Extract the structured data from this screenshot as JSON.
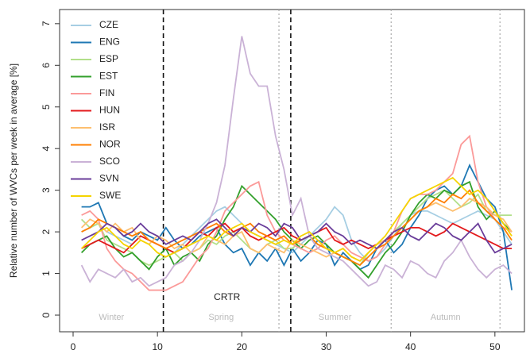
{
  "chart_data": {
    "type": "line",
    "y_label": "Relative number of WVCs per week in average [%]",
    "x": [
      1,
      2,
      3,
      4,
      5,
      6,
      7,
      8,
      9,
      10,
      11,
      12,
      13,
      14,
      15,
      16,
      17,
      18,
      19,
      20,
      21,
      22,
      23,
      24,
      25,
      26,
      27,
      28,
      29,
      30,
      31,
      32,
      33,
      34,
      35,
      36,
      37,
      38,
      39,
      40,
      41,
      42,
      43,
      44,
      45,
      46,
      47,
      48,
      49,
      50,
      51,
      52
    ],
    "series": [
      {
        "name": "CZE",
        "color": "#a6cee3",
        "values": [
          2.0,
          2.1,
          2.2,
          2.0,
          1.9,
          1.8,
          1.7,
          1.9,
          1.8,
          1.7,
          1.6,
          1.5,
          1.7,
          1.9,
          2.1,
          2.3,
          2.5,
          2.6,
          2.4,
          2.2,
          2.0,
          1.9,
          1.8,
          1.7,
          1.6,
          1.5,
          1.7,
          1.9,
          2.1,
          2.3,
          2.6,
          2.4,
          1.8,
          1.5,
          1.3,
          1.4,
          1.6,
          1.9,
          2.2,
          2.4,
          2.5,
          2.5,
          2.4,
          2.3,
          2.2,
          2.3,
          2.4,
          2.5,
          2.4,
          2.3,
          2.0,
          1.7
        ]
      },
      {
        "name": "ENG",
        "color": "#1f78b4",
        "values": [
          2.6,
          2.6,
          2.7,
          2.2,
          2.1,
          1.9,
          1.8,
          2.0,
          1.9,
          1.8,
          2.1,
          1.8,
          1.6,
          1.7,
          1.9,
          2.0,
          2.1,
          1.7,
          1.5,
          1.6,
          1.2,
          1.5,
          1.3,
          1.6,
          1.2,
          1.6,
          1.3,
          1.5,
          1.8,
          1.7,
          1.2,
          1.5,
          1.3,
          1.1,
          1.2,
          1.6,
          1.8,
          1.5,
          1.7,
          2.1,
          2.4,
          2.8,
          3.0,
          3.1,
          2.9,
          3.1,
          3.6,
          3.2,
          2.8,
          2.6,
          2.0,
          0.6
        ]
      },
      {
        "name": "ESP",
        "color": "#b2df8a",
        "values": [
          2.3,
          2.1,
          2.2,
          1.8,
          1.7,
          1.6,
          1.5,
          1.3,
          1.2,
          1.3,
          1.4,
          1.5,
          1.3,
          1.5,
          1.6,
          1.8,
          1.7,
          1.9,
          2.0,
          1.8,
          1.6,
          1.5,
          1.7,
          1.8,
          1.6,
          1.6,
          1.8,
          1.9,
          1.7,
          1.6,
          1.5,
          1.4,
          1.3,
          1.2,
          1.5,
          1.7,
          1.8,
          2.0,
          2.2,
          2.4,
          2.6,
          2.8,
          2.9,
          3.0,
          2.8,
          2.6,
          2.7,
          2.9,
          2.5,
          2.4,
          2.4,
          2.4
        ]
      },
      {
        "name": "EST",
        "color": "#33a02c",
        "values": [
          1.5,
          1.7,
          1.8,
          1.9,
          1.6,
          1.4,
          1.5,
          1.3,
          1.1,
          1.4,
          1.6,
          1.2,
          1.4,
          1.5,
          1.3,
          1.7,
          1.9,
          2.3,
          2.6,
          3.1,
          2.9,
          2.7,
          2.5,
          2.3,
          2.0,
          1.8,
          1.6,
          1.8,
          1.9,
          1.7,
          1.5,
          1.4,
          1.3,
          1.1,
          0.9,
          1.2,
          1.5,
          1.7,
          2.0,
          2.4,
          2.7,
          2.9,
          2.8,
          3.0,
          2.9,
          3.1,
          3.2,
          2.6,
          2.3,
          2.5,
          2.2,
          2.0
        ]
      },
      {
        "name": "FIN",
        "color": "#fb9a99",
        "values": [
          2.4,
          2.5,
          2.3,
          1.6,
          1.3,
          1.1,
          1.0,
          0.8,
          0.6,
          0.6,
          0.6,
          0.7,
          0.8,
          1.1,
          1.4,
          1.6,
          2.0,
          2.5,
          2.7,
          2.9,
          3.1,
          3.2,
          2.4,
          2.0,
          1.8,
          1.7,
          1.6,
          1.5,
          1.6,
          1.8,
          1.9,
          1.7,
          1.5,
          1.4,
          1.3,
          1.4,
          1.7,
          2.0,
          2.5,
          2.8,
          2.9,
          2.9,
          3.0,
          3.2,
          3.4,
          4.1,
          4.3,
          3.2,
          2.6,
          2.3,
          2.1,
          2.0
        ]
      },
      {
        "name": "HUN",
        "color": "#e31a1c",
        "values": [
          1.6,
          1.7,
          1.8,
          1.7,
          1.6,
          1.5,
          1.7,
          1.9,
          1.8,
          1.7,
          1.6,
          1.5,
          1.6,
          1.8,
          2.0,
          1.9,
          2.1,
          2.2,
          2.0,
          2.1,
          1.9,
          1.8,
          1.9,
          2.0,
          2.1,
          1.9,
          1.8,
          1.9,
          2.0,
          2.1,
          1.8,
          1.7,
          1.8,
          1.7,
          1.6,
          1.7,
          1.8,
          1.9,
          2.0,
          2.1,
          2.1,
          2.0,
          1.9,
          2.0,
          2.2,
          2.1,
          2.0,
          1.9,
          1.8,
          1.7,
          1.6,
          1.6
        ]
      },
      {
        "name": "ISR",
        "color": "#fdbf6f",
        "values": [
          2.1,
          2.3,
          2.2,
          2.0,
          2.2,
          2.0,
          2.1,
          1.8,
          1.7,
          1.9,
          1.8,
          1.6,
          1.7,
          1.5,
          1.6,
          1.9,
          1.8,
          1.7,
          1.9,
          2.0,
          1.6,
          1.5,
          1.7,
          1.6,
          1.5,
          1.8,
          1.7,
          1.6,
          1.5,
          1.4,
          1.5,
          1.6,
          1.4,
          1.3,
          1.5,
          1.7,
          1.8,
          2.0,
          2.1,
          2.3,
          2.5,
          2.6,
          2.7,
          2.6,
          2.5,
          2.6,
          2.8,
          2.7,
          2.6,
          2.4,
          2.3,
          2.0
        ]
      },
      {
        "name": "NOR",
        "color": "#ff7f00",
        "values": [
          2.0,
          2.1,
          2.3,
          2.2,
          2.1,
          2.0,
          1.9,
          2.0,
          1.8,
          1.7,
          1.6,
          1.7,
          1.8,
          1.9,
          2.0,
          2.1,
          2.2,
          2.0,
          1.9,
          2.1,
          2.2,
          2.0,
          1.9,
          1.8,
          1.9,
          1.7,
          1.8,
          1.9,
          1.7,
          1.6,
          1.5,
          1.4,
          1.3,
          1.2,
          1.4,
          1.6,
          1.7,
          1.9,
          2.1,
          2.3,
          2.5,
          2.6,
          2.8,
          2.7,
          2.9,
          2.8,
          3.0,
          2.7,
          2.5,
          2.3,
          2.1,
          1.8
        ]
      },
      {
        "name": "SCO",
        "color": "#cab2d6",
        "values": [
          1.2,
          0.8,
          1.1,
          1.0,
          0.9,
          1.1,
          0.8,
          0.9,
          0.7,
          0.8,
          0.9,
          1.2,
          1.3,
          1.5,
          1.8,
          2.2,
          2.7,
          3.6,
          5.2,
          6.7,
          5.8,
          5.5,
          5.5,
          4.3,
          3.5,
          2.4,
          2.8,
          1.9,
          1.6,
          1.5,
          1.4,
          1.3,
          1.1,
          0.9,
          0.7,
          0.8,
          1.2,
          1.1,
          0.9,
          1.3,
          1.2,
          1.0,
          0.9,
          1.3,
          1.5,
          1.8,
          1.4,
          1.1,
          0.9,
          1.1,
          1.2,
          1.0
        ]
      },
      {
        "name": "SVN",
        "color": "#6a3d9a",
        "values": [
          1.8,
          1.9,
          2.0,
          2.2,
          2.1,
          1.9,
          2.0,
          2.2,
          2.0,
          1.9,
          1.7,
          1.8,
          1.9,
          1.8,
          2.0,
          2.2,
          2.3,
          2.1,
          1.9,
          2.1,
          2.0,
          2.2,
          2.1,
          1.9,
          2.2,
          2.1,
          1.8,
          1.9,
          2.0,
          2.2,
          2.0,
          1.9,
          1.7,
          1.8,
          1.7,
          1.6,
          1.8,
          2.0,
          2.1,
          1.9,
          1.8,
          2.0,
          2.2,
          2.1,
          1.9,
          1.8,
          2.0,
          2.2,
          1.8,
          1.5,
          1.6,
          1.7
        ]
      },
      {
        "name": "SWE",
        "color": "#f5d400",
        "values": [
          1.6,
          1.8,
          2.0,
          2.1,
          1.9,
          1.7,
          1.6,
          1.8,
          1.7,
          1.5,
          1.4,
          1.5,
          1.6,
          1.7,
          1.8,
          1.9,
          1.8,
          2.0,
          2.1,
          2.2,
          2.0,
          1.9,
          1.8,
          1.7,
          1.8,
          1.7,
          1.9,
          2.0,
          1.8,
          1.6,
          1.5,
          1.6,
          1.4,
          1.3,
          1.5,
          1.7,
          1.9,
          2.2,
          2.5,
          2.8,
          2.9,
          3.0,
          3.1,
          3.2,
          3.3,
          3.1,
          2.9,
          3.0,
          2.8,
          2.5,
          2.2,
          1.9
        ]
      }
    ],
    "xlim": [
      -1.6,
      53.5
    ],
    "xticks": [
      0,
      10,
      20,
      30,
      40,
      50
    ],
    "ylim": [
      -0.4,
      7.34
    ],
    "yticks": [
      0,
      1,
      2,
      3,
      4,
      5,
      6,
      7
    ],
    "dashed_lines": [
      10.7,
      25.8
    ],
    "dotted_lines": [
      24.4,
      37.7,
      50.6
    ],
    "seasons": [
      "Winter",
      "Spring",
      "Summer",
      "Autumn"
    ],
    "annotation": "CRTR",
    "legend": "top-left"
  }
}
